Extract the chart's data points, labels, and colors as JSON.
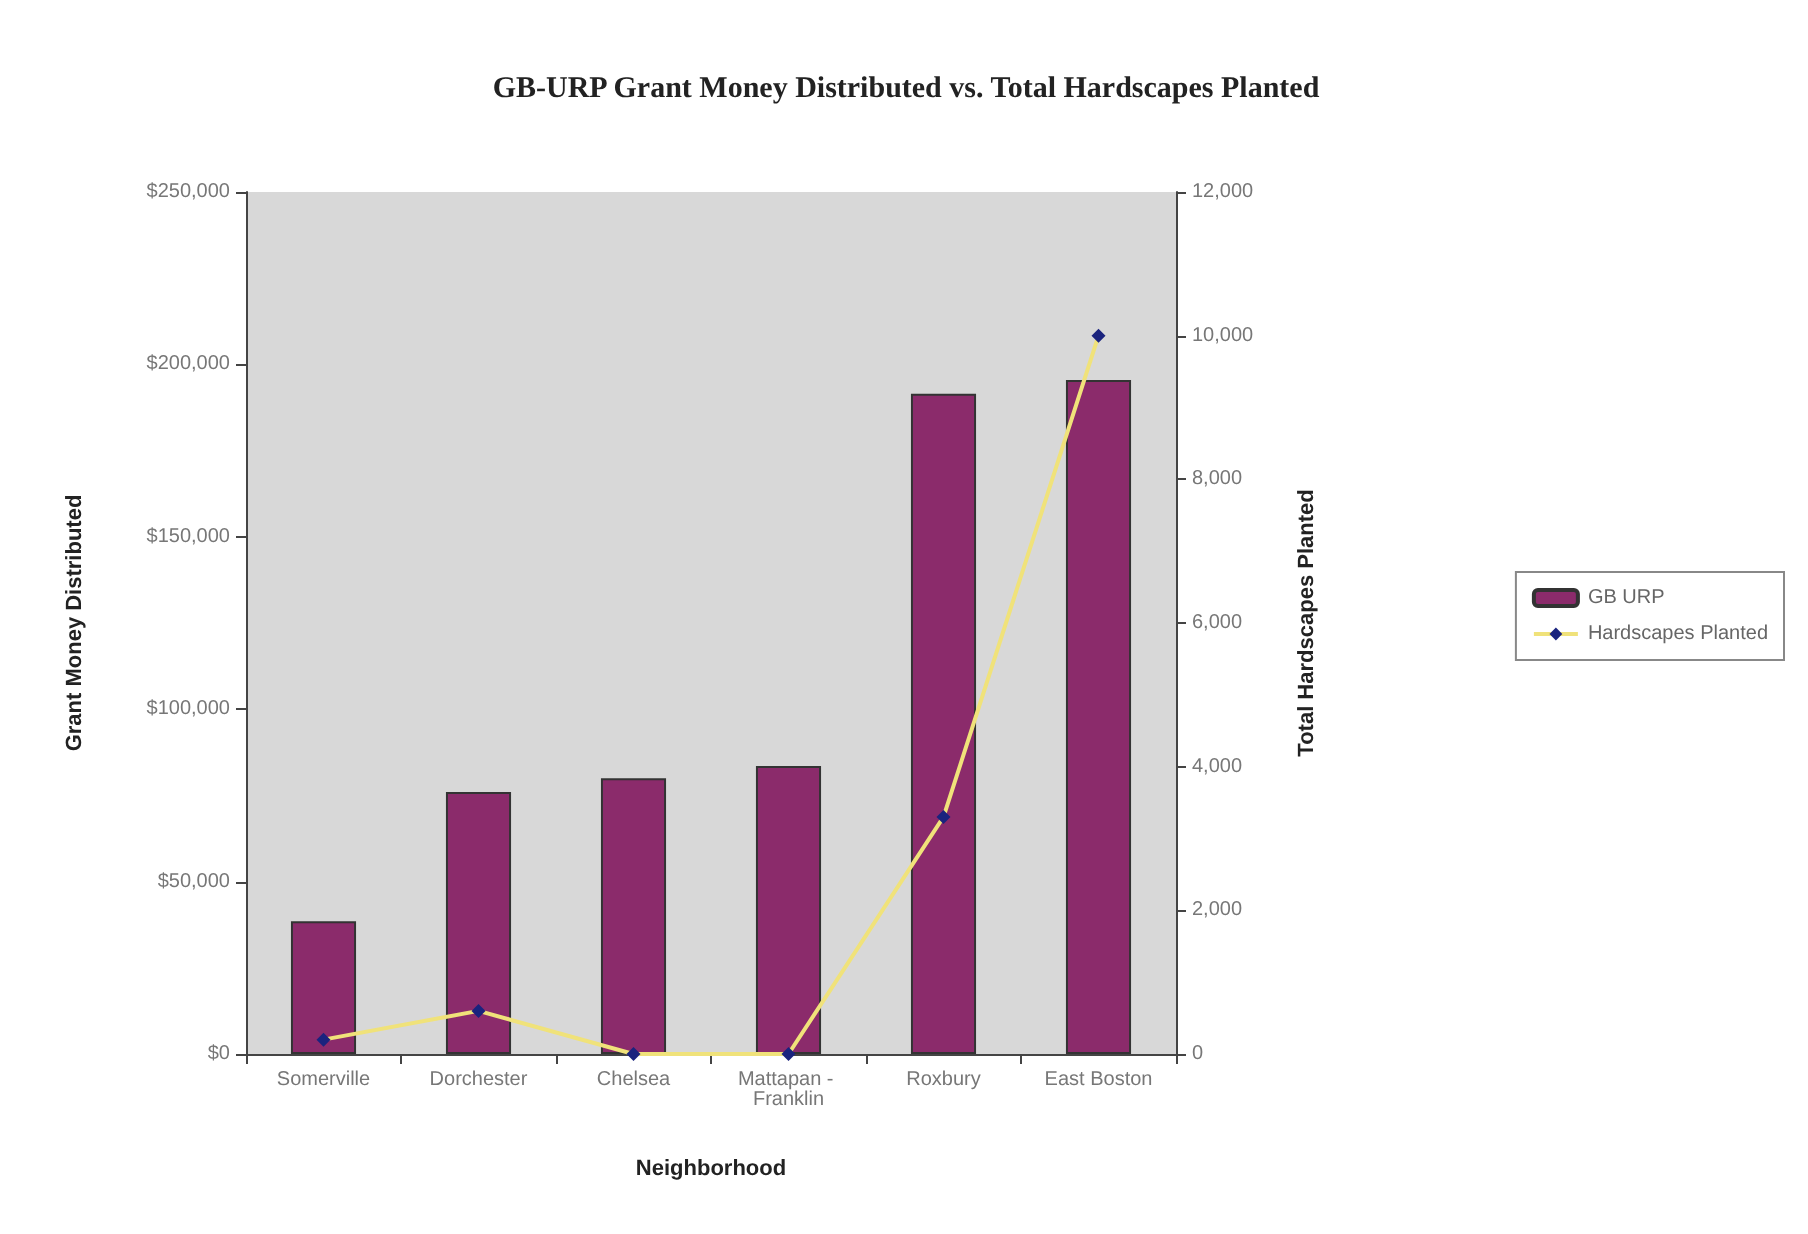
{
  "chart_data": {
    "type": "bar",
    "title": "GB-URP Grant Money Distributed vs. Total Hardscapes Planted",
    "xlabel": "Neighborhood",
    "ylabel": "Grant Money Distributed",
    "y2label": "Total Hardscapes Planted",
    "categories": [
      "Somerville",
      "Dorchester",
      "Chelsea",
      "Mattapan - Franklin",
      "Roxbury",
      "East Boston"
    ],
    "series": [
      {
        "name": "GB URP",
        "color": "#8b2b6b",
        "values": [
          38500,
          76000,
          80000,
          83500,
          191500,
          195500
        ]
      },
      {
        "name": "Hardscapes Planted",
        "type": "line",
        "axis": "y2",
        "color": "#1a237e",
        "values": [
          200,
          600,
          0,
          0,
          3300,
          10000
        ]
      }
    ],
    "ylim": [
      0,
      250000
    ],
    "yticks": [
      {
        "value": 0,
        "label": "$0"
      },
      {
        "value": 50000,
        "label": "$50,000"
      },
      {
        "value": 100000,
        "label": "$100,000"
      },
      {
        "value": 150000,
        "label": "$150,000"
      },
      {
        "value": 200000,
        "label": "$200,000"
      },
      {
        "value": 250000,
        "label": "$250,000"
      }
    ],
    "y2lim": [
      0,
      12000
    ],
    "y2ticks": [
      0,
      {
        "value": 2000,
        "label": "2,000"
      },
      {
        "value": 4000,
        "label": "4,000"
      },
      {
        "value": 6000,
        "label": "6,000"
      },
      {
        "value": 8000,
        "label": "8,000"
      },
      {
        "value": 10000,
        "label": "10,000"
      },
      {
        "value": 12000,
        "label": "12,000"
      }
    ],
    "grid": false,
    "legend": "right",
    "marker": "diamond",
    "line_style": "solid"
  }
}
